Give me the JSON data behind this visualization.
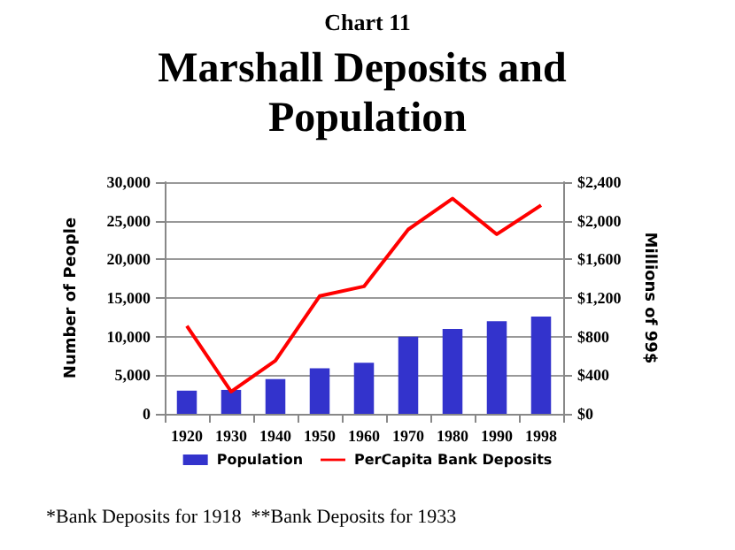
{
  "chart_data": {
    "type": "bar",
    "subtitle": "Chart 11",
    "title": "Marshall Deposits and Population",
    "categories": [
      "1920",
      "1930",
      "1940",
      "1950",
      "1960",
      "1970",
      "1980",
      "1990",
      "1998"
    ],
    "series": [
      {
        "name": "Population",
        "color": "#3333cc",
        "values": [
          3000,
          3100,
          4500,
          5900,
          6600,
          10000,
          11000,
          12000,
          12600
        ]
      },
      {
        "name": "PerCapita Bank Deposits",
        "type": "line",
        "axis": "y2",
        "color": "#ff0000",
        "values": [
          910,
          230,
          550,
          1220,
          1320,
          1910,
          2230,
          1860,
          2160
        ]
      }
    ],
    "ylabel": "Number of People",
    "y2label": "Millions of 99$",
    "ylim": [
      0,
      30000
    ],
    "yticks": [
      0,
      {
        "value": 5000,
        "label": "5,000"
      },
      {
        "value": 10000,
        "label": "10,000"
      },
      {
        "value": 15000,
        "label": "15,000"
      },
      {
        "value": 20000,
        "label": "20,000"
      },
      {
        "value": 25000,
        "label": "25,000"
      },
      {
        "value": 30000,
        "label": "30,000"
      }
    ],
    "y2lim": [
      0,
      2400
    ],
    "y2ticks": [
      {
        "value": 0,
        "label": "$0"
      },
      {
        "value": 400,
        "label": "$400"
      },
      {
        "value": 800,
        "label": "$800"
      },
      {
        "value": 1200,
        "label": "$1,200"
      },
      {
        "value": 1600,
        "label": "$1,600"
      },
      {
        "value": 2000,
        "label": "$2,000"
      },
      {
        "value": 2400,
        "label": "$2,400"
      }
    ],
    "grid": "y",
    "legend": "bottom",
    "marker": "none",
    "annotations": [
      "*Bank Deposits for 1918  **Bank Deposits for 1933"
    ]
  }
}
